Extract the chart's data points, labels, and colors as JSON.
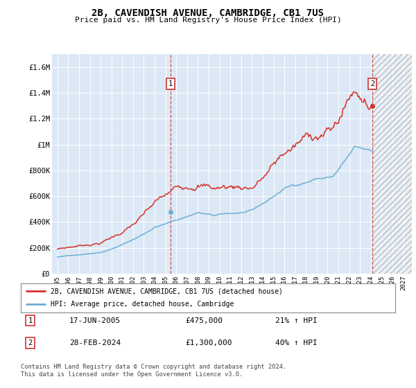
{
  "title": "2B, CAVENDISH AVENUE, CAMBRIDGE, CB1 7US",
  "subtitle": "Price paid vs. HM Land Registry's House Price Index (HPI)",
  "ylim": [
    0,
    1700000
  ],
  "yticks": [
    0,
    200000,
    400000,
    600000,
    800000,
    1000000,
    1200000,
    1400000,
    1600000
  ],
  "ytick_labels": [
    "£0",
    "£200K",
    "£400K",
    "£600K",
    "£800K",
    "£1M",
    "£1.2M",
    "£1.4M",
    "£1.6M"
  ],
  "xlim_start": 1994.5,
  "xlim_end": 2027.8,
  "xtick_years": [
    1995,
    1996,
    1997,
    1998,
    1999,
    2000,
    2001,
    2002,
    2003,
    2004,
    2005,
    2006,
    2007,
    2008,
    2009,
    2010,
    2011,
    2012,
    2013,
    2014,
    2015,
    2016,
    2017,
    2018,
    2019,
    2020,
    2021,
    2022,
    2023,
    2024,
    2025,
    2026,
    2027
  ],
  "bg_color": "#dce8f5",
  "future_shade_start": 2024.17,
  "future_shade_end": 2027.8,
  "marker1_x": 2005.46,
  "marker1_y": 475000,
  "marker1_label": "1",
  "marker1_date": "17-JUN-2005",
  "marker1_price": "£475,000",
  "marker1_hpi": "21% ↑ HPI",
  "marker2_x": 2024.17,
  "marker2_y": 1300000,
  "marker2_label": "2",
  "marker2_date": "28-FEB-2024",
  "marker2_price": "£1,300,000",
  "marker2_hpi": "40% ↑ HPI",
  "hpi_line_color": "#6baed6",
  "price_line_color": "#d73027",
  "legend_label_price": "2B, CAVENDISH AVENUE, CAMBRIDGE, CB1 7US (detached house)",
  "legend_label_hpi": "HPI: Average price, detached house, Cambridge",
  "footer": "Contains HM Land Registry data © Crown copyright and database right 2024.\nThis data is licensed under the Open Government Licence v3.0."
}
